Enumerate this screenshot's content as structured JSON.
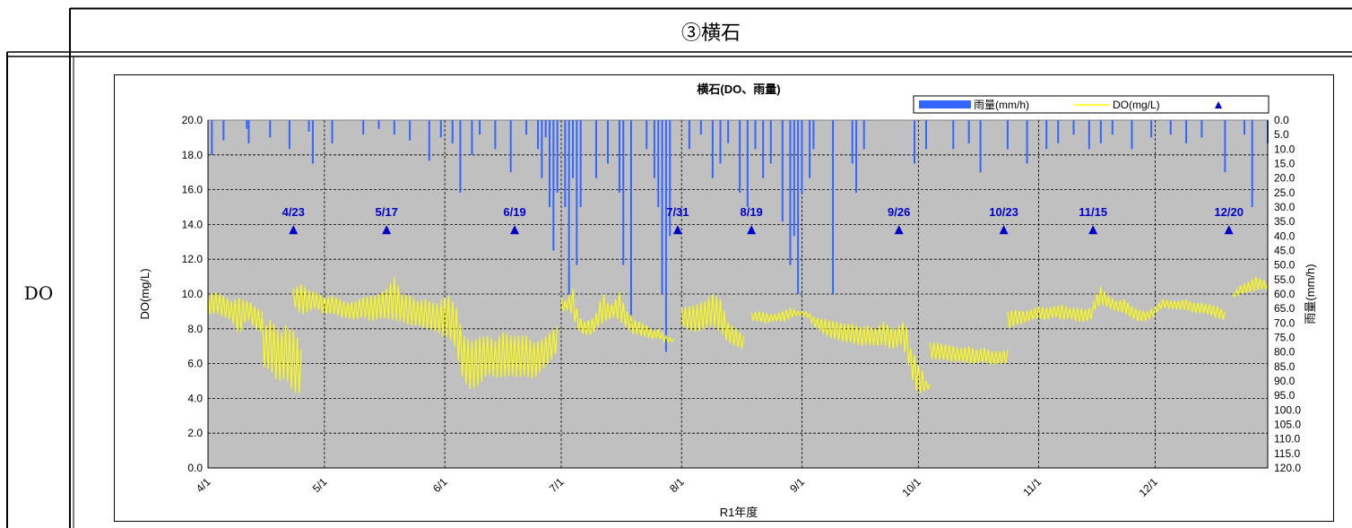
{
  "header": {
    "station_title": "③横石"
  },
  "row": {
    "parameter_label": "DO"
  },
  "chart_data": {
    "type": "line",
    "title": "横石(DO、雨量)",
    "xlabel": "R1年度",
    "ylabel_left": "DO(mg/L)",
    "ylabel_right": "雨量(mm/h)",
    "ylim_left": [
      0,
      20
    ],
    "ylim_right": [
      0,
      120
    ],
    "right_axis_inverted": true,
    "grid": true,
    "legend_position": "top-right",
    "x_ticks": [
      "4/1",
      "5/1",
      "6/1",
      "7/1",
      "8/1",
      "9/1",
      "10/1",
      "11/1",
      "12/1"
    ],
    "x_tick_days": [
      0,
      30,
      61,
      91,
      122,
      153,
      183,
      214,
      244
    ],
    "x_max_day": 273,
    "y_ticks_left": [
      "0.0",
      "2.0",
      "4.0",
      "6.0",
      "8.0",
      "10.0",
      "12.0",
      "14.0",
      "16.0",
      "18.0",
      "20.0"
    ],
    "y_ticks_right": [
      "0.0",
      "5.0",
      "10.0",
      "15.0",
      "20.0",
      "25.0",
      "30.0",
      "35.0",
      "40.0",
      "45.0",
      "50.0",
      "55.0",
      "60.0",
      "65.0",
      "70.0",
      "75.0",
      "80.0",
      "85.0",
      "90.0",
      "95.0",
      "100.0",
      "105.0",
      "110.0",
      "115.0",
      "120.0"
    ],
    "legend": [
      {
        "name": "雨量(mm/h)",
        "color": "#3366ff",
        "style": "bar"
      },
      {
        "name": "DO(mg/L)",
        "color": "#ffff00",
        "style": "line"
      },
      {
        "name": "",
        "color": "#0000cc",
        "style": "triangle"
      }
    ],
    "colors": {
      "plot_bg": "#c0c0c0",
      "do_line": "#ffff00",
      "rain": "#3366ff",
      "marker": "#0000cc"
    },
    "sampling_markers": {
      "labels": [
        "4/23",
        "5/17",
        "6/19",
        "7/31",
        "8/19",
        "9/26",
        "10/23",
        "11/15",
        "12/20"
      ],
      "day": [
        22,
        46,
        79,
        121,
        140,
        178,
        205,
        228,
        263
      ],
      "value": [
        13.7,
        13.7,
        13.7,
        13.7,
        13.7,
        13.7,
        13.7,
        13.7,
        13.7
      ]
    },
    "do_series": {
      "name": "DO(mg/L)",
      "segments": [
        {
          "day": [
            0,
            2,
            4,
            6,
            8,
            10,
            11,
            12,
            14
          ],
          "high": [
            10.0,
            10.1,
            9.9,
            9.6,
            9.8,
            9.6,
            9.5,
            9.3,
            9.0
          ],
          "low": [
            8.8,
            8.9,
            8.7,
            8.5,
            7.6,
            8.6,
            8.4,
            8.0,
            7.8
          ]
        },
        {
          "day": [
            14,
            15,
            16,
            17,
            18,
            19,
            20,
            21,
            22,
            23,
            24
          ],
          "high": [
            8.6,
            8.2,
            8.5,
            8.3,
            8.0,
            7.8,
            8.2,
            8.0,
            7.9,
            7.5,
            6.8
          ],
          "low": [
            6.0,
            5.6,
            5.8,
            5.2,
            5.0,
            5.0,
            5.2,
            4.8,
            4.4,
            4.3,
            4.3
          ]
        },
        {
          "day": [
            22,
            24,
            26,
            28,
            30,
            32,
            34,
            36,
            38,
            40,
            42,
            44,
            46,
            48,
            50,
            52,
            54,
            56,
            58,
            60
          ],
          "high": [
            10.3,
            10.6,
            10.2,
            10.1,
            9.8,
            9.9,
            9.7,
            9.5,
            9.6,
            9.8,
            9.9,
            10.0,
            10.3,
            11.0,
            10.0,
            9.9,
            9.6,
            9.7,
            9.5,
            9.4
          ],
          "low": [
            9.4,
            8.8,
            9.0,
            9.2,
            8.8,
            8.9,
            8.7,
            8.6,
            8.5,
            8.7,
            8.4,
            8.6,
            8.6,
            8.5,
            8.4,
            8.2,
            8.2,
            8.0,
            7.9,
            7.7
          ]
        },
        {
          "day": [
            60,
            62,
            64,
            65,
            66,
            67,
            68,
            70,
            72,
            74,
            76,
            78,
            80,
            82,
            84,
            86,
            88,
            90
          ],
          "high": [
            9.7,
            9.9,
            9.2,
            8.3,
            7.6,
            7.4,
            7.3,
            7.5,
            7.6,
            7.3,
            7.8,
            7.6,
            7.6,
            7.6,
            7.2,
            7.4,
            7.8,
            8.1
          ],
          "low": [
            7.6,
            7.5,
            6.8,
            5.5,
            5.0,
            4.6,
            4.5,
            4.8,
            5.4,
            5.2,
            5.2,
            5.3,
            5.2,
            5.3,
            5.1,
            5.6,
            6.1,
            6.7
          ]
        },
        {
          "day": [
            91,
            92,
            93,
            94,
            95,
            96,
            97,
            98,
            99,
            100,
            101,
            102,
            103,
            104,
            105,
            106,
            107,
            108,
            109,
            110,
            111,
            112,
            113,
            114,
            115,
            116,
            117,
            118,
            119,
            120
          ],
          "high": [
            9.8,
            9.6,
            9.9,
            10.3,
            9.2,
            8.6,
            8.4,
            8.5,
            8.6,
            8.9,
            9.6,
            10.0,
            9.5,
            9.4,
            9.7,
            10.1,
            9.5,
            9.0,
            8.8,
            8.5,
            8.4,
            8.3,
            8.2,
            8.0,
            7.9,
            8.0,
            7.8,
            7.6,
            7.5,
            7.4
          ],
          "low": [
            8.8,
            9.2,
            9.0,
            8.8,
            8.0,
            7.8,
            7.6,
            7.7,
            7.6,
            8.0,
            8.2,
            8.4,
            8.5,
            8.6,
            8.7,
            8.4,
            8.3,
            8.0,
            7.8,
            7.6,
            7.7,
            7.5,
            7.6,
            7.4,
            7.4,
            7.5,
            7.3,
            7.2,
            7.3,
            7.2
          ]
        },
        {
          "day": [
            122,
            124,
            126,
            128,
            130,
            132,
            134,
            136,
            138
          ],
          "high": [
            9.2,
            9.3,
            9.4,
            9.6,
            10.0,
            9.7,
            8.4,
            8.0,
            7.6
          ],
          "low": [
            8.2,
            7.9,
            7.8,
            8.0,
            8.2,
            7.8,
            7.2,
            7.0,
            6.8
          ]
        },
        {
          "day": [
            140,
            142,
            144,
            146,
            148,
            150,
            152,
            154
          ],
          "high": [
            8.9,
            9.0,
            8.9,
            8.8,
            9.0,
            9.2,
            9.0,
            9.0
          ],
          "low": [
            8.5,
            8.4,
            8.3,
            8.5,
            8.4,
            8.6,
            8.8,
            8.7
          ]
        },
        {
          "day": [
            154,
            156,
            158,
            160,
            162,
            164,
            166,
            168,
            170,
            172,
            174,
            176,
            178
          ],
          "high": [
            9.0,
            8.7,
            8.6,
            8.5,
            8.4,
            8.3,
            8.3,
            8.1,
            8.2,
            8.0,
            8.4,
            8.1,
            8.0
          ],
          "low": [
            8.8,
            8.2,
            7.8,
            7.5,
            7.4,
            7.2,
            7.2,
            7.0,
            7.1,
            7.0,
            7.1,
            6.8,
            7.0
          ]
        },
        {
          "day": [
            178,
            179,
            180,
            181,
            182,
            183,
            184,
            185,
            186
          ],
          "high": [
            8.2,
            8.4,
            8.1,
            6.9,
            6.5,
            5.9,
            5.6,
            5.0,
            4.8
          ],
          "low": [
            7.2,
            7.0,
            6.3,
            5.5,
            4.6,
            4.3,
            4.3,
            4.5,
            4.6
          ]
        },
        {
          "day": [
            186,
            188,
            190,
            192,
            194,
            196,
            198,
            200,
            202,
            204,
            206
          ],
          "high": [
            7.2,
            7.2,
            7.1,
            7.0,
            6.9,
            7.0,
            6.8,
            6.9,
            6.7,
            6.7,
            6.8
          ],
          "low": [
            6.3,
            6.2,
            6.2,
            6.1,
            6.1,
            6.0,
            6.0,
            6.1,
            5.9,
            6.0,
            6.0
          ]
        },
        {
          "day": [
            206,
            208,
            210,
            212,
            214,
            216,
            218,
            220,
            222,
            224,
            226,
            228
          ],
          "high": [
            9.0,
            9.1,
            9.0,
            9.1,
            9.3,
            9.2,
            9.3,
            9.4,
            9.2,
            9.2,
            9.1,
            9.3
          ],
          "low": [
            8.0,
            8.2,
            8.3,
            8.5,
            8.6,
            8.5,
            8.7,
            8.5,
            8.6,
            8.4,
            8.4,
            8.6
          ]
        },
        {
          "day": [
            228,
            230,
            232,
            234,
            236,
            238,
            240,
            242,
            244
          ],
          "high": [
            9.6,
            10.4,
            9.9,
            9.6,
            9.7,
            9.3,
            9.1,
            9.0,
            9.2
          ],
          "low": [
            9.0,
            9.4,
            9.2,
            9.0,
            8.9,
            8.6,
            8.4,
            8.5,
            8.8
          ]
        },
        {
          "day": [
            244,
            246,
            248,
            250,
            252,
            254,
            256,
            258,
            260,
            262
          ],
          "high": [
            9.3,
            9.7,
            9.6,
            9.6,
            9.7,
            9.5,
            9.5,
            9.4,
            9.3,
            9.0
          ],
          "low": [
            8.9,
            9.2,
            9.2,
            9.1,
            9.1,
            8.9,
            8.9,
            8.8,
            8.6,
            8.5
          ]
        },
        {
          "day": [
            264,
            266,
            268,
            270,
            272,
            273
          ],
          "high": [
            10.0,
            10.5,
            10.7,
            11.0,
            10.8,
            10.6
          ],
          "low": [
            9.8,
            10.0,
            10.1,
            10.2,
            10.3,
            10.3
          ]
        }
      ]
    },
    "rain_series": {
      "name": "雨量(mm/h)",
      "day": [
        1,
        4,
        10,
        10.5,
        16,
        21,
        26,
        27,
        32,
        40,
        44,
        48,
        52,
        57,
        60,
        63,
        65,
        68,
        70,
        74,
        78,
        82,
        85,
        86,
        87,
        88,
        89,
        90,
        92,
        93,
        94,
        95,
        96,
        100,
        103,
        106,
        107,
        109,
        113,
        115,
        116,
        117,
        118,
        119,
        124,
        127,
        130,
        132,
        134,
        137,
        139,
        141,
        143,
        145,
        148,
        150,
        151,
        152,
        153,
        155,
        156,
        161,
        166,
        167,
        169,
        182,
        185,
        192,
        196,
        199,
        206,
        211,
        216,
        219,
        223,
        227,
        230,
        233,
        238,
        243,
        248,
        252,
        256,
        262,
        267,
        269,
        273
      ],
      "mm": [
        12,
        7,
        3,
        8,
        6,
        10,
        4,
        15,
        8,
        5,
        3,
        5,
        7,
        14,
        6,
        8,
        25,
        12,
        5,
        10,
        18,
        5,
        10,
        20,
        6,
        30,
        45,
        25,
        30,
        60,
        20,
        50,
        30,
        20,
        15,
        25,
        50,
        70,
        10,
        20,
        30,
        60,
        80,
        40,
        10,
        5,
        20,
        15,
        8,
        25,
        30,
        10,
        20,
        15,
        35,
        50,
        40,
        60,
        25,
        20,
        10,
        60,
        15,
        25,
        10,
        15,
        10,
        10,
        8,
        18,
        10,
        15,
        10,
        8,
        5,
        10,
        8,
        5,
        10,
        6,
        5,
        8,
        6,
        18,
        5,
        30,
        8
      ]
    }
  }
}
